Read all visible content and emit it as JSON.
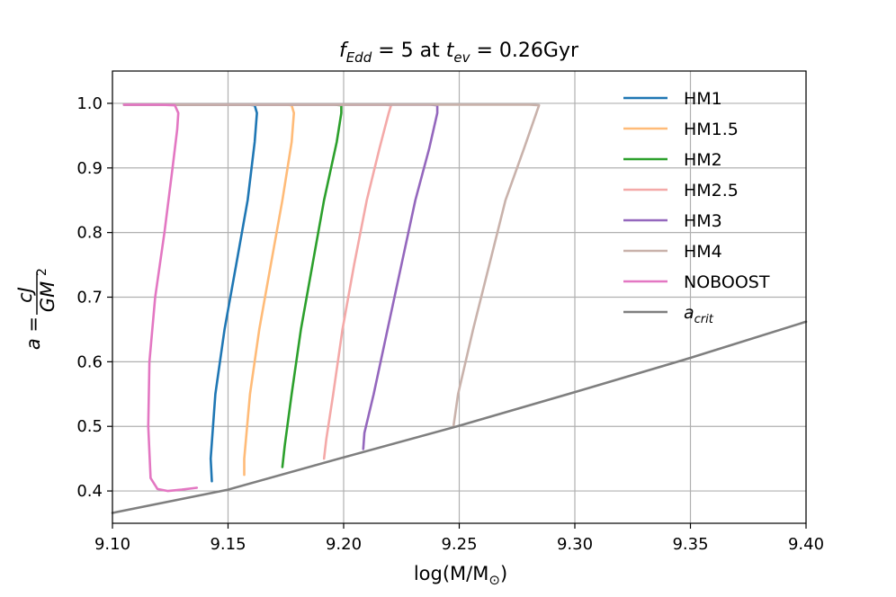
{
  "chart_data": {
    "type": "line",
    "title": {
      "f_symbol": "f",
      "f_sub": "Edd",
      "f_value": " = 5 at ",
      "t_symbol": "t",
      "t_sub": "ev",
      "t_value": " = 0.26Gyr"
    },
    "xlabel": {
      "text_before": "log(M/M",
      "subscript": "⊙",
      "text_after": ")"
    },
    "ylabel": {
      "lhs": "a = ",
      "numerator": "cJ",
      "denominator": "GM",
      "power": "2"
    },
    "xlim": [
      9.1,
      9.4
    ],
    "ylim": [
      0.35,
      1.05
    ],
    "x_ticks": [
      "9.10",
      "9.15",
      "9.20",
      "9.25",
      "9.30",
      "9.35",
      "9.40"
    ],
    "y_ticks": [
      "0.4",
      "0.5",
      "0.6",
      "0.7",
      "0.8",
      "0.9",
      "1.0"
    ],
    "grid": true,
    "legend_position": "upper-right",
    "series": [
      {
        "name": "HM1",
        "color": "#1f77b4",
        "points": [
          [
            9.143,
            0.415
          ],
          [
            9.1425,
            0.45
          ],
          [
            9.1445,
            0.55
          ],
          [
            9.1485,
            0.65
          ],
          [
            9.1535,
            0.75
          ],
          [
            9.1585,
            0.85
          ],
          [
            9.1615,
            0.94
          ],
          [
            9.1625,
            0.985
          ],
          [
            9.1615,
            0.997
          ],
          [
            9.1585,
            0.998
          ],
          [
            9.12,
            0.998
          ],
          [
            9.105,
            0.998
          ]
        ]
      },
      {
        "name": "HM1.5",
        "color": "#ffbb78",
        "points": [
          [
            9.157,
            0.425
          ],
          [
            9.157,
            0.45
          ],
          [
            9.1595,
            0.55
          ],
          [
            9.1635,
            0.65
          ],
          [
            9.1685,
            0.75
          ],
          [
            9.1735,
            0.85
          ],
          [
            9.1775,
            0.94
          ],
          [
            9.1785,
            0.985
          ],
          [
            9.1775,
            0.997
          ],
          [
            9.1755,
            0.998
          ],
          [
            9.12,
            0.998
          ],
          [
            9.105,
            0.998
          ]
        ]
      },
      {
        "name": "HM2",
        "color": "#2ca02c",
        "points": [
          [
            9.1735,
            0.437
          ],
          [
            9.1745,
            0.47
          ],
          [
            9.1775,
            0.55
          ],
          [
            9.1815,
            0.65
          ],
          [
            9.1865,
            0.75
          ],
          [
            9.1915,
            0.85
          ],
          [
            9.197,
            0.94
          ],
          [
            9.199,
            0.985
          ],
          [
            9.199,
            0.997
          ],
          [
            9.196,
            0.998
          ],
          [
            9.12,
            0.998
          ],
          [
            9.105,
            0.998
          ]
        ]
      },
      {
        "name": "HM2.5",
        "color": "#f4a9a8",
        "points": [
          [
            9.1915,
            0.45
          ],
          [
            9.1925,
            0.48
          ],
          [
            9.1955,
            0.55
          ],
          [
            9.1995,
            0.65
          ],
          [
            9.2045,
            0.75
          ],
          [
            9.21,
            0.85
          ],
          [
            9.2155,
            0.93
          ],
          [
            9.2195,
            0.985
          ],
          [
            9.2205,
            0.997
          ],
          [
            9.2175,
            0.998
          ],
          [
            9.12,
            0.998
          ],
          [
            9.105,
            0.998
          ]
        ]
      },
      {
        "name": "HM3",
        "color": "#9467bd",
        "points": [
          [
            9.2085,
            0.465
          ],
          [
            9.209,
            0.49
          ],
          [
            9.213,
            0.55
          ],
          [
            9.219,
            0.65
          ],
          [
            9.225,
            0.75
          ],
          [
            9.231,
            0.85
          ],
          [
            9.237,
            0.93
          ],
          [
            9.2405,
            0.985
          ],
          [
            9.2405,
            0.997
          ],
          [
            9.2375,
            0.998
          ],
          [
            9.12,
            0.998
          ],
          [
            9.105,
            0.998
          ]
        ]
      },
      {
        "name": "HM4",
        "color": "#c9b2ab",
        "points": [
          [
            9.2475,
            0.5
          ],
          [
            9.2495,
            0.55
          ],
          [
            9.256,
            0.65
          ],
          [
            9.263,
            0.75
          ],
          [
            9.27,
            0.85
          ],
          [
            9.278,
            0.93
          ],
          [
            9.2845,
            0.997
          ],
          [
            9.2805,
            0.998
          ],
          [
            9.12,
            0.998
          ],
          [
            9.105,
            0.998
          ]
        ]
      },
      {
        "name": "NOBOOST",
        "color": "#e377c2",
        "points": [
          [
            9.1365,
            0.405
          ],
          [
            9.13,
            0.402
          ],
          [
            9.124,
            0.4
          ],
          [
            9.1195,
            0.403
          ],
          [
            9.1165,
            0.42
          ],
          [
            9.1155,
            0.5
          ],
          [
            9.116,
            0.6
          ],
          [
            9.1185,
            0.7
          ],
          [
            9.1225,
            0.8
          ],
          [
            9.126,
            0.9
          ],
          [
            9.128,
            0.96
          ],
          [
            9.1285,
            0.985
          ],
          [
            9.127,
            0.997
          ],
          [
            9.12,
            0.998
          ],
          [
            9.105,
            0.998
          ]
        ]
      },
      {
        "name": "a_crit",
        "label_main": "a",
        "label_sub": "crit",
        "color": "#7f7f7f",
        "points": [
          [
            9.1,
            0.366
          ],
          [
            9.15,
            0.402
          ],
          [
            9.2,
            0.452
          ],
          [
            9.25,
            0.501
          ],
          [
            9.3,
            0.553
          ],
          [
            9.35,
            0.606
          ],
          [
            9.4,
            0.662
          ]
        ]
      }
    ]
  }
}
